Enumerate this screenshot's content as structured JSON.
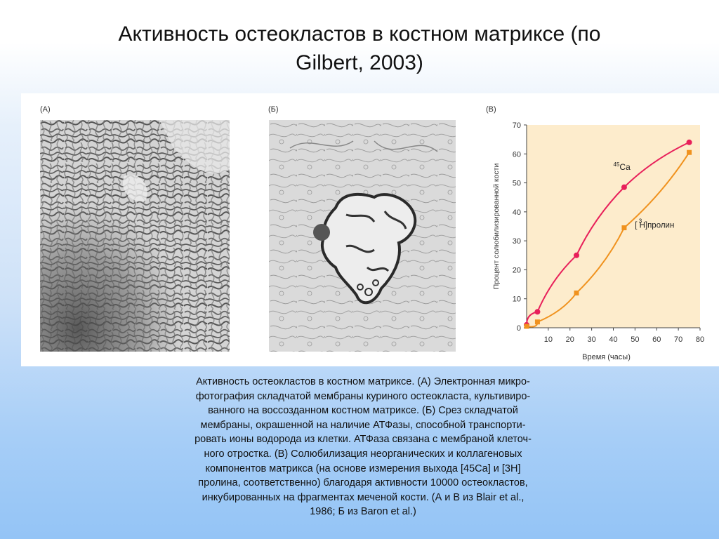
{
  "title": {
    "line1": "Активность остеокластов в костном матриксе (по",
    "line2": "Gilbert, 2003)"
  },
  "panels": {
    "a_label": "(А)",
    "b_label": "(Б)",
    "c_label": "(В)"
  },
  "caption_lines": [
    "Активность остеокластов в костном матриксе. (А) Электронная микро-",
    "фотография складчатой мембраны куриного остеокласта, культивиро-",
    "ванного на воссозданном костном матриксе. (Б) Срез складчатой",
    "мембраны, окрашенной на наличие АТФазы, способной транспорти-",
    "ровать ионы водорода из клетки. АТФаза связана с мембраной клеточ-",
    "ного отростка. (В) Солюбилизация неорганических и коллагеновых",
    "компонентов матрикса (на основе измерения выхода [45Ca] и [3H]",
    "пролина, соответственно) благодаря активности 10000 остеокластов,",
    "инкубированных на фрагментах меченой кости. (А и В из Blair et al.,",
    "1986; Б из Baron et al.)"
  ],
  "colors": {
    "plot_background": "#fdeccc",
    "ca_series": "#e8205a",
    "proline_series": "#f0921e",
    "axis": "#444444"
  },
  "chart_data": {
    "type": "line",
    "xlabel": "Время (часы)",
    "ylabel": "Процент солюбилизированной кости",
    "xlim": [
      0,
      80
    ],
    "ylim": [
      0,
      70
    ],
    "x_ticks": [
      "10",
      "20",
      "30",
      "40",
      "50",
      "60",
      "70",
      "80"
    ],
    "y_ticks": [
      "0",
      "10",
      "20",
      "30",
      "40",
      "50",
      "60",
      "70"
    ],
    "series": [
      {
        "name_super": "45",
        "name_main": "Ca",
        "marker": "circle",
        "x": [
          0,
          5,
          23,
          45,
          75
        ],
        "y": [
          1,
          5.5,
          25,
          48.5,
          64
        ]
      },
      {
        "name_super": "3",
        "name_main": "[ H]пролин",
        "marker": "square",
        "x": [
          0,
          5,
          23,
          45,
          75
        ],
        "y": [
          0.5,
          2,
          12,
          34.5,
          60.5
        ]
      }
    ]
  }
}
